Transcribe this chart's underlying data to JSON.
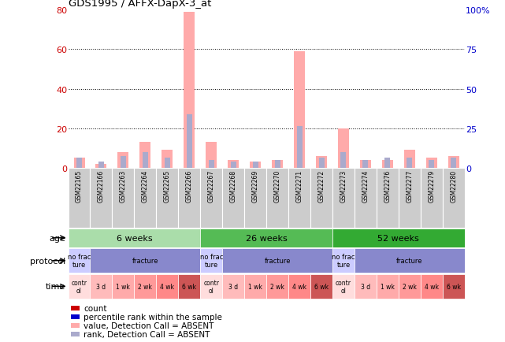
{
  "title": "GDS1995 / AFFX-DapX-3_at",
  "samples": [
    "GSM22165",
    "GSM22166",
    "GSM22263",
    "GSM22264",
    "GSM22265",
    "GSM22266",
    "GSM22267",
    "GSM22268",
    "GSM22269",
    "GSM22270",
    "GSM22271",
    "GSM22272",
    "GSM22273",
    "GSM22274",
    "GSM22276",
    "GSM22277",
    "GSM22279",
    "GSM22280"
  ],
  "pink_bars": [
    5,
    2,
    8,
    13,
    9,
    79,
    13,
    4,
    3,
    4,
    59,
    6,
    20,
    4,
    4,
    9,
    5,
    6
  ],
  "blue_bars": [
    5,
    3,
    6,
    8,
    5,
    27,
    4,
    3,
    3,
    4,
    21,
    5,
    8,
    4,
    5,
    5,
    4,
    5
  ],
  "ylim_left": [
    0,
    80
  ],
  "ylim_right": [
    0,
    100
  ],
  "yticks_left": [
    0,
    20,
    40,
    60,
    80
  ],
  "yticks_right": [
    0,
    25,
    50,
    75,
    100
  ],
  "ytick_labels_left": [
    "0",
    "20",
    "40",
    "60",
    "80"
  ],
  "ytick_labels_right": [
    "0",
    "25",
    "50",
    "75",
    "100%"
  ],
  "left_yaxis_color": "#cc0000",
  "right_yaxis_color": "#0000cc",
  "pink_bar_color": "#ffaaaa",
  "blue_bar_color": "#aaaacc",
  "sample_bg_color": "#cccccc",
  "age_data": [
    {
      "label": "6 weeks",
      "start": 0,
      "end": 6,
      "color": "#aaddaa"
    },
    {
      "label": "26 weeks",
      "start": 6,
      "end": 12,
      "color": "#55bb55"
    },
    {
      "label": "52 weeks",
      "start": 12,
      "end": 18,
      "color": "#33aa33"
    }
  ],
  "protocol_data": [
    {
      "label": "no frac\nture",
      "start": 0,
      "end": 1,
      "color": "#ccccff"
    },
    {
      "label": "fracture",
      "start": 1,
      "end": 6,
      "color": "#8888cc"
    },
    {
      "label": "no frac\nture",
      "start": 6,
      "end": 7,
      "color": "#ccccff"
    },
    {
      "label": "fracture",
      "start": 7,
      "end": 12,
      "color": "#8888cc"
    },
    {
      "label": "no frac\nture",
      "start": 12,
      "end": 13,
      "color": "#ccccff"
    },
    {
      "label": "fracture",
      "start": 13,
      "end": 18,
      "color": "#8888cc"
    }
  ],
  "time_data": [
    {
      "label": "contr\nol",
      "start": 0,
      "end": 1,
      "color": "#ffdddd"
    },
    {
      "label": "3 d",
      "start": 1,
      "end": 2,
      "color": "#ffbbbb"
    },
    {
      "label": "1 wk",
      "start": 2,
      "end": 3,
      "color": "#ffaaaa"
    },
    {
      "label": "2 wk",
      "start": 3,
      "end": 4,
      "color": "#ff9999"
    },
    {
      "label": "4 wk",
      "start": 4,
      "end": 5,
      "color": "#ff8888"
    },
    {
      "label": "6 wk",
      "start": 5,
      "end": 6,
      "color": "#cc5555"
    },
    {
      "label": "contr\nol",
      "start": 6,
      "end": 7,
      "color": "#ffdddd"
    },
    {
      "label": "3 d",
      "start": 7,
      "end": 8,
      "color": "#ffbbbb"
    },
    {
      "label": "1 wk",
      "start": 8,
      "end": 9,
      "color": "#ffaaaa"
    },
    {
      "label": "2 wk",
      "start": 9,
      "end": 10,
      "color": "#ff9999"
    },
    {
      "label": "4 wk",
      "start": 10,
      "end": 11,
      "color": "#ff8888"
    },
    {
      "label": "6 wk",
      "start": 11,
      "end": 12,
      "color": "#cc5555"
    },
    {
      "label": "contr\nol",
      "start": 12,
      "end": 13,
      "color": "#ffdddd"
    },
    {
      "label": "3 d",
      "start": 13,
      "end": 14,
      "color": "#ffbbbb"
    },
    {
      "label": "1 wk",
      "start": 14,
      "end": 15,
      "color": "#ffaaaa"
    },
    {
      "label": "2 wk",
      "start": 15,
      "end": 16,
      "color": "#ff9999"
    },
    {
      "label": "4 wk",
      "start": 16,
      "end": 17,
      "color": "#ff8888"
    },
    {
      "label": "6 wk",
      "start": 17,
      "end": 18,
      "color": "#cc5555"
    }
  ],
  "legend_items": [
    {
      "color": "#cc0000",
      "label": "count"
    },
    {
      "color": "#0000cc",
      "label": "percentile rank within the sample"
    },
    {
      "color": "#ffaaaa",
      "label": "value, Detection Call = ABSENT"
    },
    {
      "color": "#aaaacc",
      "label": "rank, Detection Call = ABSENT"
    }
  ],
  "row_labels": [
    "age",
    "protocol",
    "time"
  ],
  "dotted_lines": [
    20,
    40,
    60
  ]
}
